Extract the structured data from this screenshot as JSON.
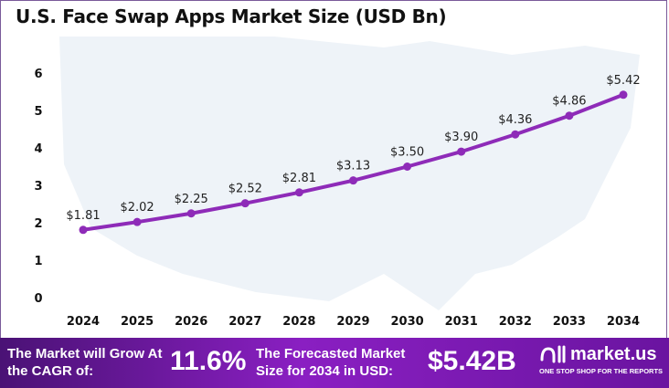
{
  "chart_data": {
    "type": "line",
    "title": "U.S. Face Swap Apps Market Size (USD Bn)",
    "categories": [
      "2024",
      "2025",
      "2026",
      "2027",
      "2028",
      "2029",
      "2030",
      "2031",
      "2032",
      "2033",
      "2034"
    ],
    "values": [
      1.81,
      2.02,
      2.25,
      2.52,
      2.81,
      3.13,
      3.5,
      3.9,
      4.36,
      4.86,
      5.42
    ],
    "data_labels": [
      "$1.81",
      "$2.02",
      "$2.25",
      "$2.52",
      "$2.81",
      "$3.13",
      "$3.50",
      "$3.90",
      "$4.36",
      "$4.86",
      "$5.42"
    ],
    "yticks": [
      "0",
      "1",
      "2",
      "3",
      "4",
      "5",
      "6"
    ],
    "ylim": [
      0,
      6
    ],
    "grid": false,
    "line_color": "#8e2bb8"
  },
  "banner": {
    "cagr_label": "The Market will Grow At the CAGR of:",
    "cagr_value": "11.6%",
    "forecast_label": "The Forecasted Market Size for 2034 in USD:",
    "forecast_value": "$5.42B",
    "logo_text": "market.us",
    "logo_tagline": "ONE STOP SHOP FOR THE REPORTS"
  }
}
